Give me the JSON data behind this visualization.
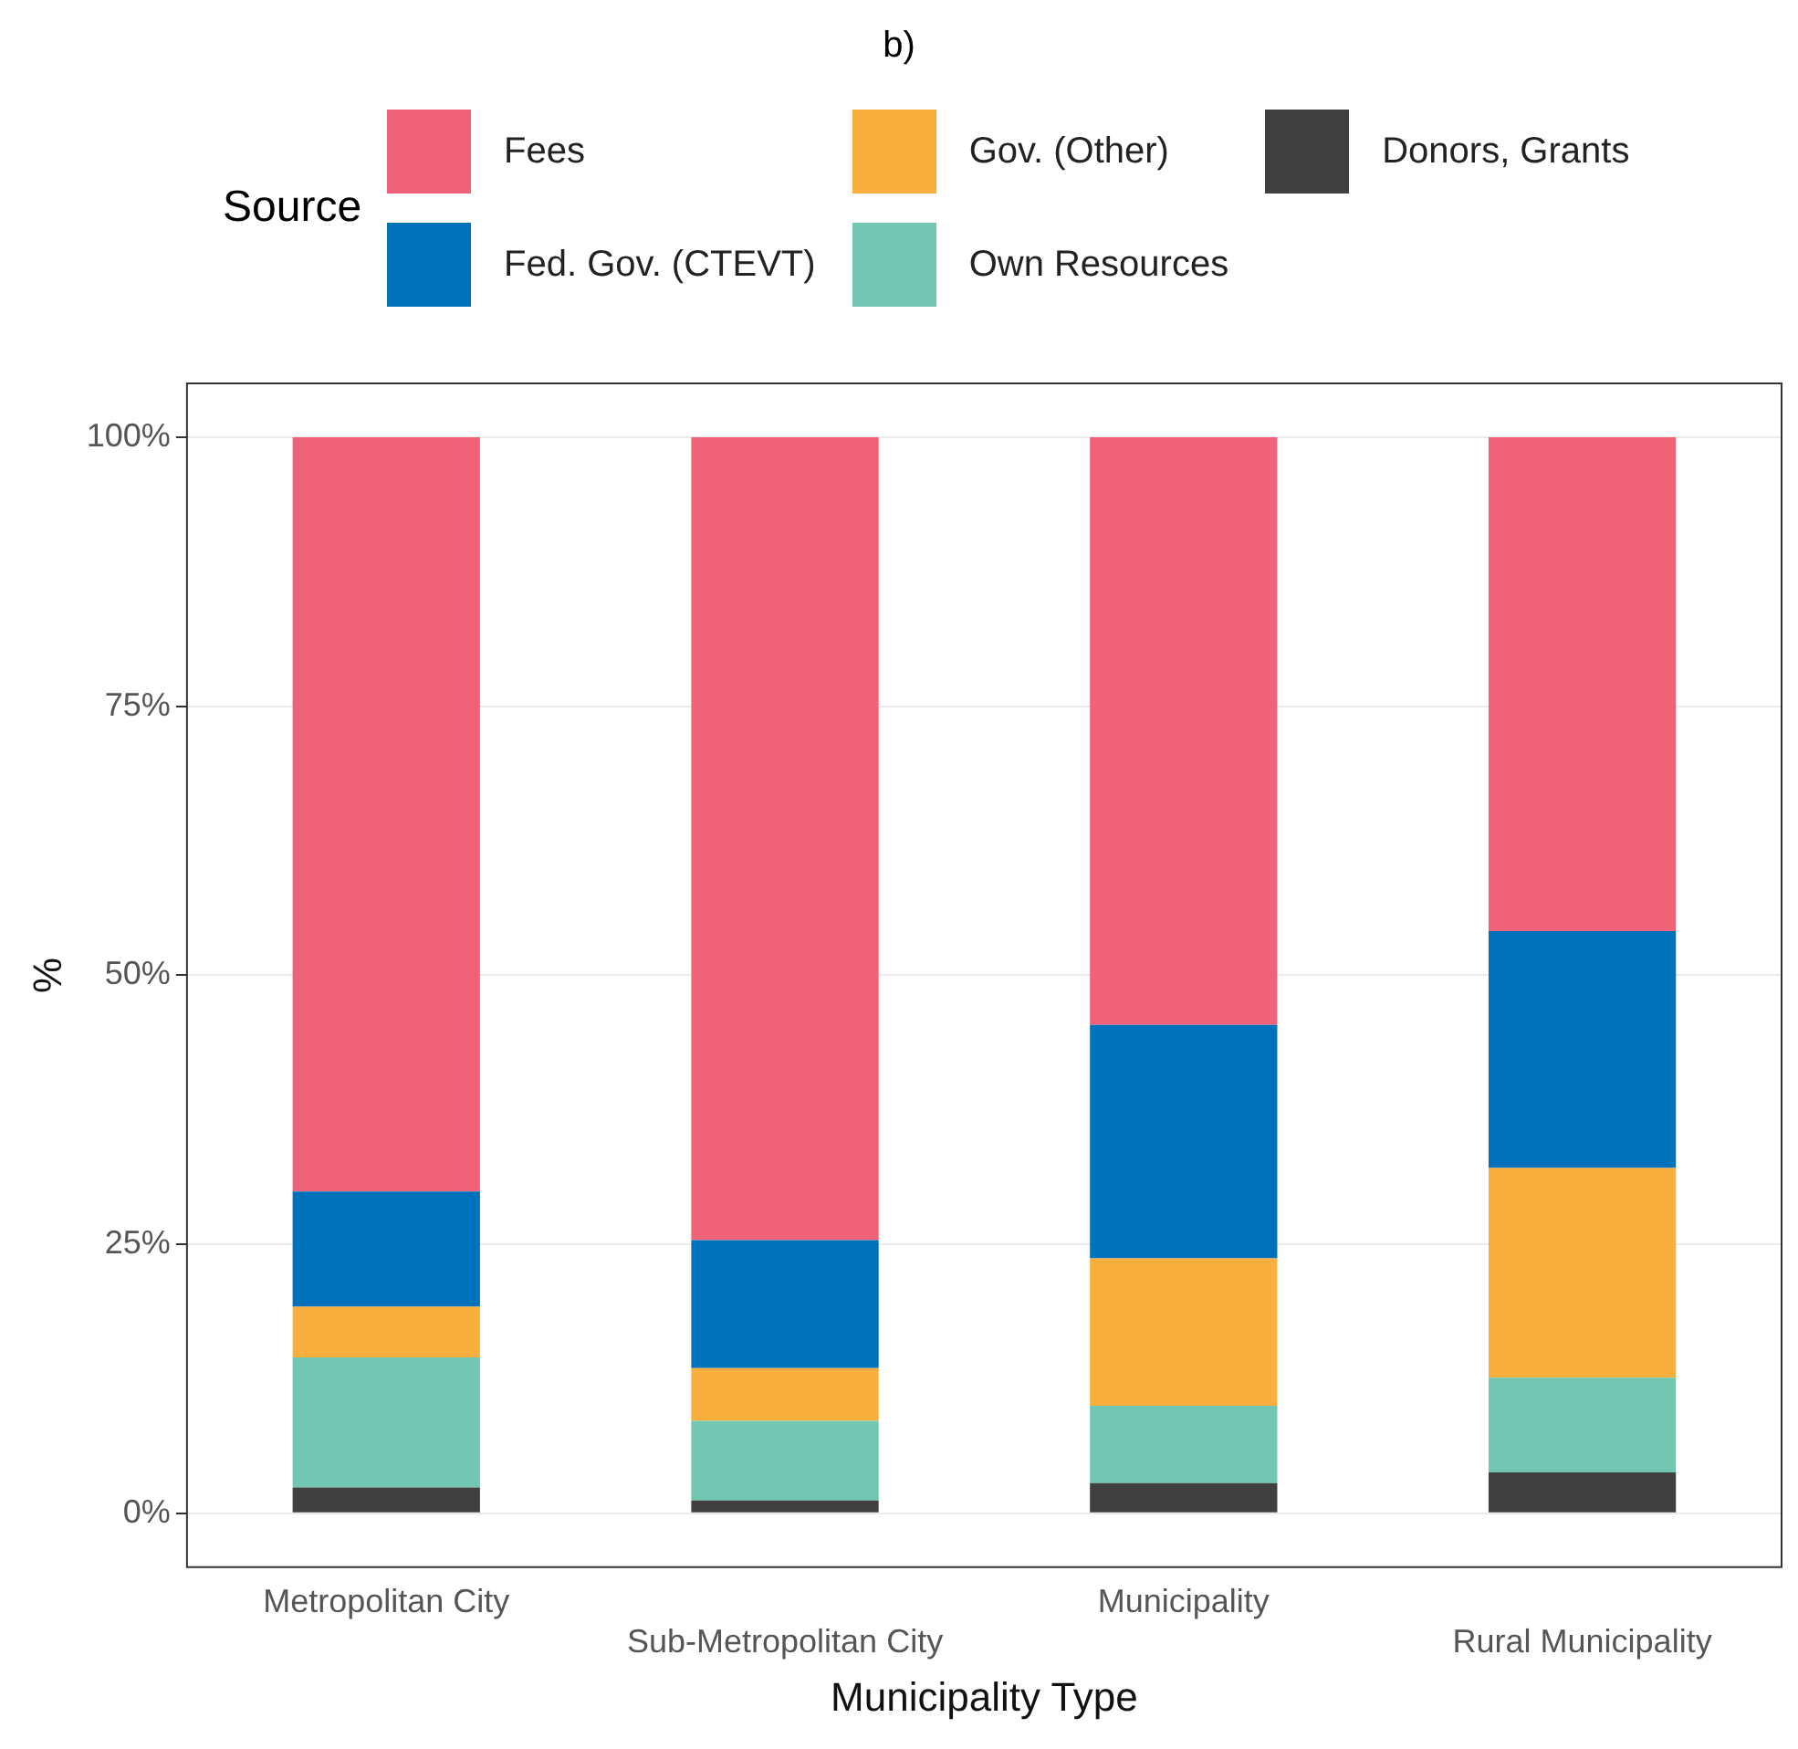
{
  "chart_data": {
    "type": "bar",
    "title": "b)",
    "xlabel": "Municipality Type",
    "ylabel": "%",
    "legend_title": "Source",
    "stacked": true,
    "legend": "top",
    "grid": "y",
    "categories": [
      "Metropolitan City",
      "Sub-Metropolitan City",
      "Municipality",
      "Rural Municipality"
    ],
    "ylim": [
      -5,
      105
    ],
    "yticks": [
      {
        "value": 0,
        "label": "0%"
      },
      {
        "value": 25,
        "label": "25%"
      },
      {
        "value": 50,
        "label": "50%"
      },
      {
        "value": 75,
        "label": "75%"
      },
      {
        "value": 100,
        "label": "100%"
      }
    ],
    "series": [
      {
        "name": "Donors, Grants",
        "color": "#404040",
        "values": [
          2.4,
          1.2,
          2.8,
          3.8
        ]
      },
      {
        "name": "Own Resources",
        "color": "#71c7b2",
        "values": [
          12.1,
          7.4,
          7.2,
          8.8
        ]
      },
      {
        "name": "Gov. (Other)",
        "color": "#f9ae3d",
        "values": [
          4.7,
          4.9,
          13.7,
          19.5
        ]
      },
      {
        "name": "Fed. Gov. (CTEVT)",
        "color": "#0071bb",
        "values": [
          10.7,
          11.9,
          21.7,
          22.0
        ]
      },
      {
        "name": "Fees",
        "color": "#f06277",
        "values": [
          70.1,
          74.6,
          54.6,
          45.9
        ]
      }
    ]
  }
}
